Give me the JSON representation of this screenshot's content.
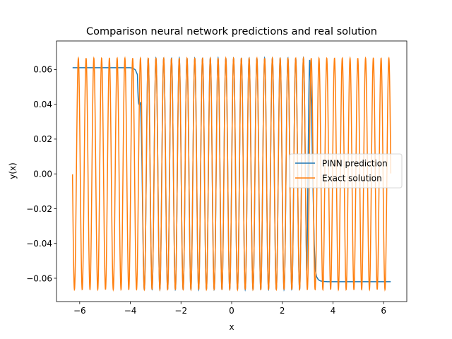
{
  "chart_data": {
    "type": "line",
    "title": "Comparison neural network predictions and real solution",
    "xlabel": "x",
    "ylabel": "y(x)",
    "xlim": [
      -6.915,
      6.915
    ],
    "ylim": [
      -0.0734,
      0.0764
    ],
    "xticks": [
      -6,
      -4,
      -2,
      0,
      2,
      4,
      6
    ],
    "xtick_labels": [
      "−6",
      "−4",
      "−2",
      "0",
      "2",
      "4",
      "6"
    ],
    "yticks": [
      -0.06,
      -0.04,
      -0.02,
      0.0,
      0.02,
      0.04,
      0.06
    ],
    "ytick_labels": [
      "−0.06",
      "−0.04",
      "−0.02",
      "0.00",
      "0.02",
      "0.04",
      "0.06"
    ],
    "grid": false,
    "legend_position": "center-right",
    "exact_model": {
      "amplitude": 0.0665,
      "frequency_per_unit": 20.5,
      "x_range": [
        -6.283,
        6.283
      ]
    },
    "series": [
      {
        "name": "PINN prediction",
        "color": "#1f77b4",
        "x": [
          -6.28,
          -4.0,
          -3.9,
          -3.8,
          -3.72,
          -3.66,
          -3.6,
          -3.55,
          -3.5,
          -3.47,
          -3.4,
          -2.8,
          -2.2,
          -1.0,
          0.0,
          1.0,
          1.9,
          2.4,
          2.45,
          3.0,
          3.08,
          3.15,
          3.2,
          3.26,
          3.3,
          3.35,
          3.42,
          3.5,
          3.6,
          3.8,
          4.0,
          6.28
        ],
        "y": [
          0.061,
          0.061,
          0.0608,
          0.0598,
          0.057,
          0.045,
          0.02,
          -0.02,
          -0.055,
          -0.0698,
          -0.066,
          0.0682,
          0.0678,
          -0.0672,
          0.0665,
          0.0665,
          0.0678,
          -0.0698,
          -0.066,
          0.0712,
          0.066,
          0.04,
          0.0,
          -0.04,
          -0.055,
          -0.059,
          -0.0608,
          -0.0615,
          -0.0618,
          -0.062,
          -0.062,
          -0.062
        ]
      },
      {
        "name": "Exact solution",
        "color": "#ff7f0e",
        "x": [
          -6.283,
          6.283
        ],
        "y": [
          0.0025,
          -0.0665
        ]
      }
    ]
  }
}
